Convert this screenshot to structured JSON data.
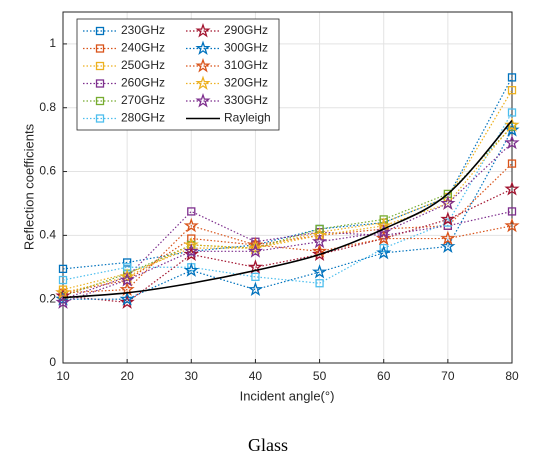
{
  "chart_data": {
    "type": "line",
    "caption": "Glass",
    "xlabel": "Incident angle(°)",
    "ylabel": "Reflection coefficients",
    "x": [
      10,
      20,
      30,
      40,
      50,
      60,
      70,
      80
    ],
    "xlim": [
      10,
      80
    ],
    "xticks": [
      10,
      20,
      30,
      40,
      50,
      60,
      70,
      80
    ],
    "ylim": [
      0,
      1.1
    ],
    "yticks": [
      0,
      0.2,
      0.4,
      0.6,
      0.8,
      1
    ],
    "grid": true,
    "legend": "upper left",
    "series": [
      {
        "name": "230GHz",
        "color": "#0072BD",
        "marker": "square",
        "style": "dotted",
        "values": [
          0.295,
          0.315,
          0.35,
          0.37,
          0.42,
          0.44,
          0.52,
          0.895
        ]
      },
      {
        "name": "240GHz",
        "color": "#D95319",
        "marker": "square",
        "style": "dotted",
        "values": [
          0.22,
          0.26,
          0.39,
          0.37,
          0.4,
          0.42,
          0.43,
          0.625
        ]
      },
      {
        "name": "250GHz",
        "color": "#EDB120",
        "marker": "square",
        "style": "dotted",
        "values": [
          0.23,
          0.28,
          0.36,
          0.36,
          0.41,
          0.44,
          0.52,
          0.855
        ]
      },
      {
        "name": "260GHz",
        "color": "#7E2F8E",
        "marker": "square",
        "style": "dotted",
        "values": [
          0.2,
          0.27,
          0.475,
          0.38,
          0.41,
          0.4,
          0.43,
          0.475
        ]
      },
      {
        "name": "270GHz",
        "color": "#77AC30",
        "marker": "square",
        "style": "dotted",
        "values": [
          0.21,
          0.28,
          0.37,
          0.36,
          0.42,
          0.45,
          0.53,
          0.74
        ]
      },
      {
        "name": "280GHz",
        "color": "#4DBEEE",
        "marker": "square",
        "style": "dotted",
        "values": [
          0.26,
          0.3,
          0.3,
          0.27,
          0.25,
          0.36,
          0.44,
          0.785
        ]
      },
      {
        "name": "290GHz",
        "color": "#A2142F",
        "marker": "star",
        "style": "dotted",
        "values": [
          0.21,
          0.19,
          0.34,
          0.3,
          0.34,
          0.39,
          0.45,
          0.545
        ]
      },
      {
        "name": "300GHz",
        "color": "#0072BD",
        "marker": "star",
        "style": "dotted",
        "values": [
          0.2,
          0.2,
          0.29,
          0.23,
          0.285,
          0.345,
          0.365,
          0.73
        ]
      },
      {
        "name": "310GHz",
        "color": "#D95319",
        "marker": "star",
        "style": "dotted",
        "values": [
          0.22,
          0.23,
          0.43,
          0.37,
          0.35,
          0.39,
          0.39,
          0.43
        ]
      },
      {
        "name": "320GHz",
        "color": "#EDB120",
        "marker": "star",
        "style": "dotted",
        "values": [
          0.22,
          0.27,
          0.37,
          0.36,
          0.4,
          0.43,
          0.5,
          0.745
        ]
      },
      {
        "name": "330GHz",
        "color": "#7E2F8E",
        "marker": "star",
        "style": "dotted",
        "values": [
          0.19,
          0.26,
          0.35,
          0.35,
          0.38,
          0.41,
          0.5,
          0.69
        ]
      },
      {
        "name": "Rayleigh",
        "color": "#000000",
        "marker": "none",
        "style": "solid",
        "smooth": true,
        "values": [
          0.205,
          0.22,
          0.25,
          0.29,
          0.34,
          0.42,
          0.53,
          0.76
        ]
      }
    ]
  }
}
